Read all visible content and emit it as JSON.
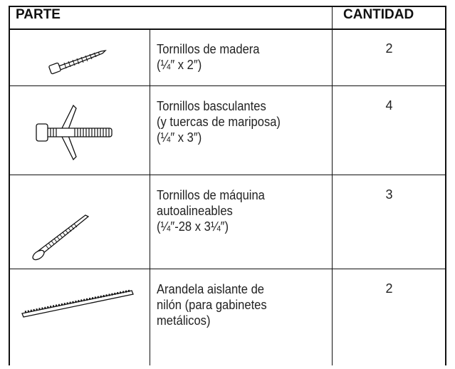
{
  "table": {
    "columns": [
      "PARTE",
      "CANTIDAD"
    ],
    "rows": [
      {
        "description": [
          "Tornillos de madera",
          "(¼″ x 2″)"
        ],
        "quantity": "2"
      },
      {
        "description": [
          "Tornillos basculantes",
          "(y tuercas de mariposa)",
          "(¼″ x 3″)"
        ],
        "quantity": "4"
      },
      {
        "description": [
          "Tornillos de máquina",
          "autoalineables",
          "(¼″-28 x 3¼″)"
        ],
        "quantity": "3"
      },
      {
        "description": [
          "Arandela aislante de",
          "nilón (para gabinetes",
          "metálicos)"
        ],
        "quantity": "2"
      }
    ]
  }
}
